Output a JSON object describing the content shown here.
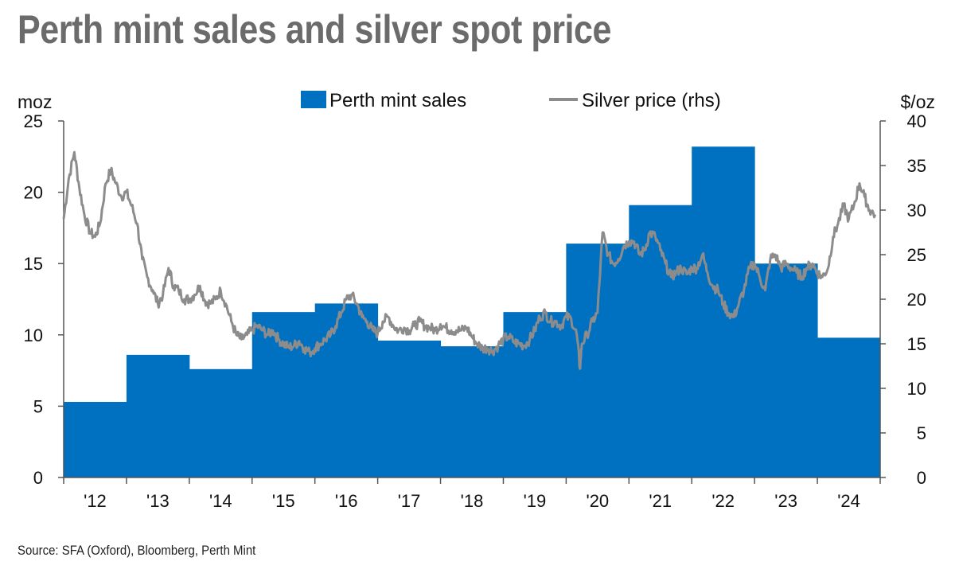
{
  "title": "Perth mint sales and silver spot price",
  "source": "Source: SFA (Oxford), Bloomberg, Perth Mint",
  "colors": {
    "bars": "#0070c0",
    "line": "#8c8c8c",
    "axis": "#555555"
  },
  "chart_data": {
    "type": "bar",
    "left_unit": "moz",
    "right_unit": "$/oz",
    "categories": [
      "'12",
      "'13",
      "'14",
      "'15",
      "'16",
      "'17",
      "'18",
      "'19",
      "'20",
      "'21",
      "'22",
      "'23",
      "'24"
    ],
    "y_left_lim": [
      0,
      25
    ],
    "y_left_ticks": [
      0,
      5,
      10,
      15,
      20,
      25
    ],
    "y_right_lim": [
      0,
      40
    ],
    "y_right_ticks": [
      0,
      5,
      10,
      15,
      20,
      25,
      30,
      35,
      40
    ],
    "series": [
      {
        "name": "Perth mint sales",
        "axis": "left",
        "kind": "bar",
        "values": [
          5.3,
          8.6,
          7.6,
          11.6,
          12.2,
          9.6,
          9.2,
          11.6,
          16.4,
          19.1,
          23.2,
          15.0,
          9.8
        ]
      },
      {
        "name": "Silver price (rhs)",
        "axis": "right",
        "kind": "line",
        "x": [
          2012.0,
          2012.08,
          2012.17,
          2012.25,
          2012.33,
          2012.42,
          2012.5,
          2012.58,
          2012.67,
          2012.75,
          2012.83,
          2012.92,
          2013.0,
          2013.08,
          2013.17,
          2013.25,
          2013.33,
          2013.42,
          2013.5,
          2013.58,
          2013.67,
          2013.75,
          2013.83,
          2013.92,
          2014.0,
          2014.08,
          2014.17,
          2014.25,
          2014.33,
          2014.42,
          2014.5,
          2014.58,
          2014.67,
          2014.75,
          2014.83,
          2014.92,
          2015.0,
          2015.08,
          2015.17,
          2015.25,
          2015.33,
          2015.42,
          2015.5,
          2015.58,
          2015.67,
          2015.75,
          2015.83,
          2015.92,
          2016.0,
          2016.08,
          2016.17,
          2016.25,
          2016.33,
          2016.42,
          2016.5,
          2016.58,
          2016.67,
          2016.75,
          2016.83,
          2016.92,
          2017.0,
          2017.08,
          2017.17,
          2017.25,
          2017.33,
          2017.42,
          2017.5,
          2017.58,
          2017.67,
          2017.75,
          2017.83,
          2017.92,
          2018.0,
          2018.08,
          2018.17,
          2018.25,
          2018.33,
          2018.42,
          2018.5,
          2018.58,
          2018.67,
          2018.75,
          2018.83,
          2018.92,
          2019.0,
          2019.08,
          2019.17,
          2019.25,
          2019.33,
          2019.42,
          2019.5,
          2019.58,
          2019.67,
          2019.75,
          2019.83,
          2019.92,
          2020.0,
          2020.08,
          2020.17,
          2020.22,
          2020.25,
          2020.33,
          2020.42,
          2020.5,
          2020.58,
          2020.67,
          2020.75,
          2020.83,
          2020.92,
          2021.0,
          2021.08,
          2021.17,
          2021.25,
          2021.33,
          2021.42,
          2021.5,
          2021.58,
          2021.67,
          2021.75,
          2021.83,
          2021.92,
          2022.0,
          2022.08,
          2022.17,
          2022.25,
          2022.33,
          2022.42,
          2022.5,
          2022.58,
          2022.67,
          2022.75,
          2022.83,
          2022.92,
          2023.0,
          2023.08,
          2023.17,
          2023.25,
          2023.33,
          2023.42,
          2023.5,
          2023.58,
          2023.67,
          2023.75,
          2023.83,
          2023.92,
          2024.0,
          2024.08,
          2024.17,
          2024.25,
          2024.33,
          2024.42,
          2024.5,
          2024.58,
          2024.67,
          2024.75,
          2024.83,
          2024.92
        ],
        "values": [
          29.0,
          33.5,
          36.5,
          32.5,
          29.5,
          27.5,
          27.0,
          28.5,
          33.0,
          34.5,
          33.0,
          31.5,
          32.0,
          30.5,
          28.5,
          24.5,
          22.5,
          21.0,
          19.5,
          20.5,
          23.5,
          21.5,
          21.0,
          20.0,
          20.0,
          20.5,
          21.5,
          19.8,
          19.5,
          20.0,
          21.0,
          19.5,
          17.5,
          16.0,
          15.5,
          16.0,
          16.5,
          17.0,
          16.5,
          16.0,
          16.5,
          15.5,
          15.0,
          14.6,
          14.8,
          15.3,
          14.5,
          14.0,
          14.5,
          15.0,
          15.5,
          16.0,
          17.0,
          18.5,
          20.0,
          20.5,
          19.5,
          18.0,
          17.5,
          16.5,
          16.2,
          17.5,
          18.0,
          17.0,
          16.5,
          16.8,
          16.5,
          17.0,
          17.5,
          17.0,
          16.8,
          16.5,
          17.2,
          16.8,
          16.5,
          16.5,
          16.5,
          16.8,
          15.8,
          15.0,
          14.5,
          14.5,
          14.2,
          14.8,
          15.5,
          15.8,
          15.2,
          15.0,
          14.8,
          15.5,
          16.5,
          18.0,
          18.5,
          17.5,
          17.5,
          17.0,
          18.0,
          17.8,
          16.0,
          12.2,
          15.0,
          16.0,
          17.5,
          18.5,
          27.5,
          25.0,
          24.0,
          24.5,
          26.0,
          26.5,
          26.5,
          25.0,
          25.5,
          27.5,
          27.0,
          25.5,
          24.0,
          22.5,
          23.0,
          23.5,
          22.8,
          23.5,
          23.5,
          25.0,
          23.0,
          21.5,
          21.0,
          19.5,
          18.5,
          18.0,
          19.5,
          21.0,
          23.5,
          24.0,
          22.5,
          21.0,
          24.5,
          25.0,
          23.5,
          24.0,
          23.5,
          23.0,
          22.5,
          23.5,
          24.0,
          23.0,
          22.5,
          23.5,
          27.0,
          28.5,
          30.5,
          29.0,
          30.5,
          33.0,
          31.5,
          30.0,
          29.5
        ]
      }
    ],
    "legend_position": "top-center",
    "grid": false
  }
}
